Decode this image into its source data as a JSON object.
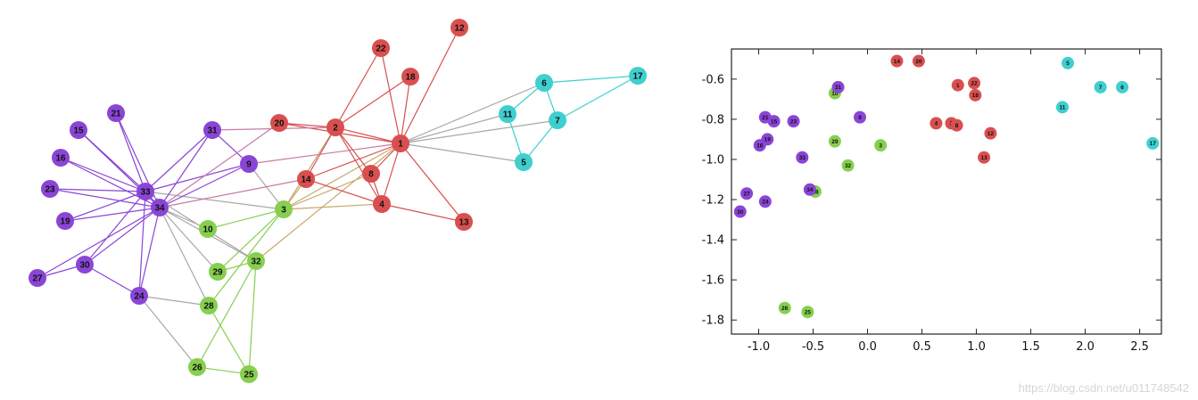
{
  "colors": {
    "red": "#d94f4f",
    "cyan": "#3fcfcf",
    "purple": "#8a45d6",
    "green": "#86cf4f",
    "gray": "#a8a8a8"
  },
  "watermark": "https://blog.csdn.net/u011748542",
  "chart_data": [
    {
      "type": "network",
      "nodes": [
        {
          "id": 1,
          "group": "red"
        },
        {
          "id": 2,
          "group": "red"
        },
        {
          "id": 3,
          "group": "green"
        },
        {
          "id": 4,
          "group": "red"
        },
        {
          "id": 5,
          "group": "cyan"
        },
        {
          "id": 6,
          "group": "cyan"
        },
        {
          "id": 7,
          "group": "cyan"
        },
        {
          "id": 8,
          "group": "red"
        },
        {
          "id": 9,
          "group": "purple"
        },
        {
          "id": 10,
          "group": "green"
        },
        {
          "id": 11,
          "group": "cyan"
        },
        {
          "id": 12,
          "group": "red"
        },
        {
          "id": 13,
          "group": "red"
        },
        {
          "id": 14,
          "group": "red"
        },
        {
          "id": 15,
          "group": "purple"
        },
        {
          "id": 16,
          "group": "purple"
        },
        {
          "id": 17,
          "group": "cyan"
        },
        {
          "id": 18,
          "group": "red"
        },
        {
          "id": 19,
          "group": "purple"
        },
        {
          "id": 20,
          "group": "red"
        },
        {
          "id": 21,
          "group": "purple"
        },
        {
          "id": 22,
          "group": "red"
        },
        {
          "id": 23,
          "group": "purple"
        },
        {
          "id": 24,
          "group": "purple"
        },
        {
          "id": 25,
          "group": "green"
        },
        {
          "id": 26,
          "group": "green"
        },
        {
          "id": 27,
          "group": "purple"
        },
        {
          "id": 28,
          "group": "green"
        },
        {
          "id": 29,
          "group": "green"
        },
        {
          "id": 30,
          "group": "purple"
        },
        {
          "id": 31,
          "group": "purple"
        },
        {
          "id": 32,
          "group": "green"
        },
        {
          "id": 33,
          "group": "purple"
        },
        {
          "id": 34,
          "group": "purple"
        }
      ],
      "edges": [
        [
          1,
          2
        ],
        [
          1,
          3
        ],
        [
          1,
          4
        ],
        [
          1,
          5
        ],
        [
          1,
          6
        ],
        [
          1,
          7
        ],
        [
          1,
          8
        ],
        [
          1,
          9
        ],
        [
          1,
          11
        ],
        [
          1,
          12
        ],
        [
          1,
          13
        ],
        [
          1,
          14
        ],
        [
          1,
          18
        ],
        [
          1,
          20
        ],
        [
          1,
          22
        ],
        [
          1,
          32
        ],
        [
          2,
          3
        ],
        [
          2,
          4
        ],
        [
          2,
          8
        ],
        [
          2,
          14
        ],
        [
          2,
          18
        ],
        [
          2,
          20
        ],
        [
          2,
          22
        ],
        [
          2,
          31
        ],
        [
          3,
          4
        ],
        [
          3,
          8
        ],
        [
          3,
          9
        ],
        [
          3,
          10
        ],
        [
          3,
          14
        ],
        [
          3,
          28
        ],
        [
          3,
          29
        ],
        [
          3,
          33
        ],
        [
          4,
          8
        ],
        [
          4,
          13
        ],
        [
          4,
          14
        ],
        [
          5,
          7
        ],
        [
          5,
          11
        ],
        [
          6,
          7
        ],
        [
          6,
          11
        ],
        [
          6,
          17
        ],
        [
          7,
          17
        ],
        [
          9,
          31
        ],
        [
          9,
          33
        ],
        [
          9,
          34
        ],
        [
          10,
          34
        ],
        [
          14,
          34
        ],
        [
          15,
          33
        ],
        [
          15,
          34
        ],
        [
          16,
          33
        ],
        [
          16,
          34
        ],
        [
          19,
          33
        ],
        [
          19,
          34
        ],
        [
          20,
          34
        ],
        [
          21,
          33
        ],
        [
          21,
          34
        ],
        [
          23,
          33
        ],
        [
          23,
          34
        ],
        [
          24,
          26
        ],
        [
          24,
          28
        ],
        [
          24,
          30
        ],
        [
          24,
          33
        ],
        [
          24,
          34
        ],
        [
          25,
          26
        ],
        [
          25,
          28
        ],
        [
          25,
          32
        ],
        [
          26,
          32
        ],
        [
          27,
          30
        ],
        [
          27,
          34
        ],
        [
          28,
          34
        ],
        [
          29,
          32
        ],
        [
          29,
          34
        ],
        [
          30,
          33
        ],
        [
          30,
          34
        ],
        [
          31,
          33
        ],
        [
          31,
          34
        ],
        [
          32,
          33
        ],
        [
          32,
          34
        ],
        [
          33,
          34
        ]
      ]
    },
    {
      "type": "scatter",
      "xlim": [
        -1.25,
        2.7
      ],
      "ylim": [
        -1.87,
        -0.45
      ],
      "xticks": [
        "-1.0",
        "-0.5",
        "0.0",
        "0.5",
        "1.0",
        "1.5",
        "2.0",
        "2.5"
      ],
      "xtick_values": [
        -1.0,
        -0.5,
        0.0,
        0.5,
        1.0,
        1.5,
        2.0,
        2.5
      ],
      "yticks": [
        "-0.6",
        "-0.8",
        "-1.0",
        "-1.2",
        "-1.4",
        "-1.6",
        "-1.8"
      ],
      "ytick_values": [
        -0.6,
        -0.8,
        -1.0,
        -1.2,
        -1.4,
        -1.6,
        -1.8
      ],
      "points": [
        {
          "label": "1",
          "x": 0.83,
          "y": -0.63,
          "group": "red"
        },
        {
          "label": "2",
          "x": 0.77,
          "y": -0.82,
          "group": "red"
        },
        {
          "label": "3",
          "x": 0.12,
          "y": -0.93,
          "group": "green"
        },
        {
          "label": "4",
          "x": 0.63,
          "y": -0.82,
          "group": "red"
        },
        {
          "label": "5",
          "x": 1.84,
          "y": -0.52,
          "group": "cyan"
        },
        {
          "label": "6",
          "x": 2.34,
          "y": -0.64,
          "group": "cyan"
        },
        {
          "label": "7",
          "x": 2.14,
          "y": -0.64,
          "group": "cyan"
        },
        {
          "label": "8",
          "x": 0.82,
          "y": -0.83,
          "group": "red"
        },
        {
          "label": "9",
          "x": -0.07,
          "y": -0.79,
          "group": "purple"
        },
        {
          "label": "10",
          "x": -0.3,
          "y": -0.67,
          "group": "green"
        },
        {
          "label": "11",
          "x": 1.79,
          "y": -0.74,
          "group": "cyan"
        },
        {
          "label": "12",
          "x": 1.13,
          "y": -0.87,
          "group": "red"
        },
        {
          "label": "13",
          "x": 1.07,
          "y": -0.99,
          "group": "red"
        },
        {
          "label": "14",
          "x": 0.27,
          "y": -0.51,
          "group": "red"
        },
        {
          "label": "15",
          "x": -0.86,
          "y": -0.81,
          "group": "purple"
        },
        {
          "label": "16",
          "x": -0.99,
          "y": -0.93,
          "group": "purple"
        },
        {
          "label": "17",
          "x": 2.62,
          "y": -0.92,
          "group": "cyan"
        },
        {
          "label": "18",
          "x": 0.99,
          "y": -0.68,
          "group": "red"
        },
        {
          "label": "19",
          "x": -0.92,
          "y": -0.9,
          "group": "purple"
        },
        {
          "label": "20",
          "x": 0.47,
          "y": -0.51,
          "group": "red"
        },
        {
          "label": "21",
          "x": -0.94,
          "y": -0.79,
          "group": "purple"
        },
        {
          "label": "22",
          "x": 0.98,
          "y": -0.62,
          "group": "red"
        },
        {
          "label": "23",
          "x": -0.68,
          "y": -0.81,
          "group": "purple"
        },
        {
          "label": "24",
          "x": -0.94,
          "y": -1.21,
          "group": "purple"
        },
        {
          "label": "25",
          "x": -0.55,
          "y": -1.76,
          "group": "green"
        },
        {
          "label": "26",
          "x": -0.76,
          "y": -1.74,
          "group": "green"
        },
        {
          "label": "27",
          "x": -1.11,
          "y": -1.17,
          "group": "purple"
        },
        {
          "label": "28",
          "x": -0.48,
          "y": -1.16,
          "group": "green"
        },
        {
          "label": "29",
          "x": -0.3,
          "y": -0.91,
          "group": "green"
        },
        {
          "label": "30",
          "x": -1.17,
          "y": -1.26,
          "group": "purple"
        },
        {
          "label": "31",
          "x": -0.27,
          "y": -0.64,
          "group": "purple"
        },
        {
          "label": "32",
          "x": -0.18,
          "y": -1.03,
          "group": "green"
        },
        {
          "label": "33",
          "x": -0.6,
          "y": -0.99,
          "group": "purple"
        },
        {
          "label": "34",
          "x": -0.53,
          "y": -1.15,
          "group": "purple"
        }
      ]
    }
  ]
}
